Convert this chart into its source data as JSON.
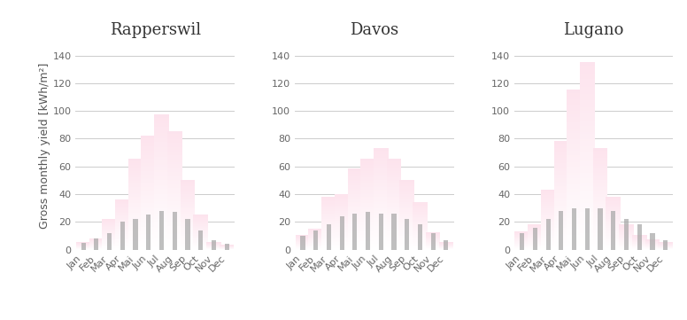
{
  "cities": [
    "Rapperswil",
    "Davos",
    "Lugano"
  ],
  "months": [
    "Jan",
    "Feb",
    "Mar",
    "Apr",
    "Mai",
    "Jun",
    "Jul",
    "Aug",
    "Sep",
    "Oct",
    "Nov",
    "Dec"
  ],
  "thermal": {
    "Rapperswil": [
      5,
      8,
      22,
      36,
      65,
      82,
      97,
      85,
      50,
      25,
      5,
      3
    ],
    "Davos": [
      10,
      15,
      38,
      40,
      58,
      65,
      73,
      65,
      50,
      34,
      12,
      5
    ],
    "Lugano": [
      13,
      18,
      43,
      78,
      115,
      135,
      73,
      38,
      18,
      10,
      7,
      5
    ]
  },
  "electrical": {
    "Rapperswil": [
      5,
      8,
      12,
      20,
      22,
      25,
      28,
      27,
      22,
      14,
      7,
      4
    ],
    "Davos": [
      10,
      14,
      18,
      24,
      26,
      27,
      26,
      26,
      22,
      18,
      12,
      7
    ],
    "Lugano": [
      12,
      16,
      22,
      28,
      30,
      30,
      30,
      28,
      22,
      18,
      12,
      7
    ]
  },
  "ylim": [
    0,
    150
  ],
  "yticks": [
    0,
    20,
    40,
    60,
    80,
    100,
    120,
    140
  ],
  "ylabel": "Gross monthly yield [kWh/m²]",
  "thermal_color_top": "#e8005a",
  "thermal_color_bottom": "#ffffff",
  "electrical_color": "#aaaaaa",
  "background_color": "#ffffff",
  "title_fontsize": 13,
  "axis_fontsize": 9,
  "tick_fontsize": 8
}
